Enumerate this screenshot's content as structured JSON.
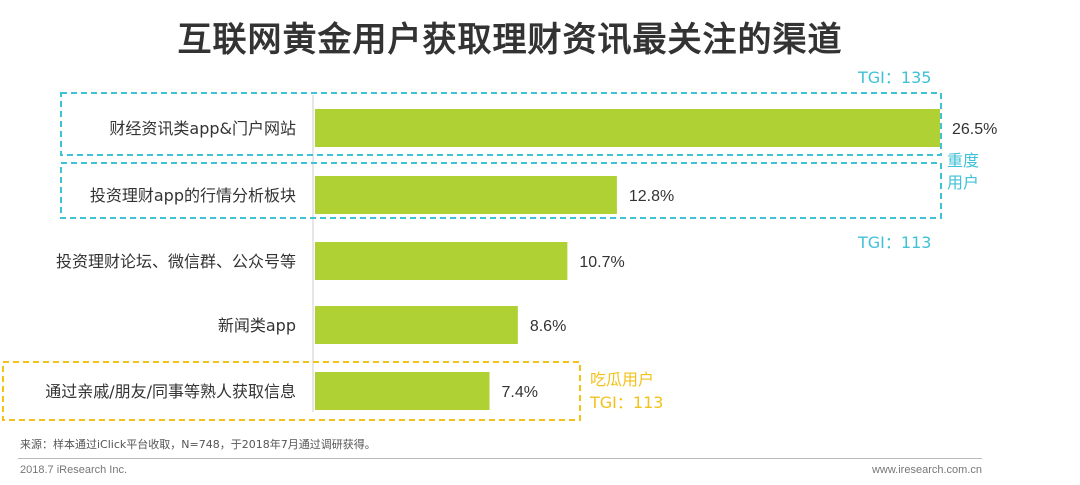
{
  "title": "互联网黄金用户获取理财资讯最关注的渠道",
  "chart_data": {
    "type": "bar",
    "orientation": "horizontal",
    "categories": [
      "财经资讯类app&门户网站",
      "投资理财app的行情分析板块",
      "投资理财论坛、微信群、公众号等",
      "新闻类app",
      "通过亲戚/朋友/同事等熟人获取信息"
    ],
    "values": [
      26.5,
      12.8,
      10.7,
      8.6,
      7.4
    ],
    "value_labels": [
      "26.5%",
      "12.8%",
      "10.7%",
      "8.6%",
      "7.4%"
    ],
    "xlim": [
      0,
      26.5
    ],
    "grid": false,
    "bar_color": "#b0d134"
  },
  "annotations": {
    "heavy_group": {
      "tgi_top": "TGI：135",
      "label_line1": "重度",
      "label_line2": "用户",
      "tgi_bottom": "TGI：113",
      "color": "#3fc1d6"
    },
    "casual_group": {
      "label": "吃瓜用户",
      "tgi": "TGI：113",
      "color": "#f2c21b"
    }
  },
  "footer": {
    "source": "来源：样本通过iClick平台收取，N=748，于2018年7月通过调研获得。",
    "left": "2018.7 iResearch Inc.",
    "right": "www.iresearch.com.cn"
  }
}
